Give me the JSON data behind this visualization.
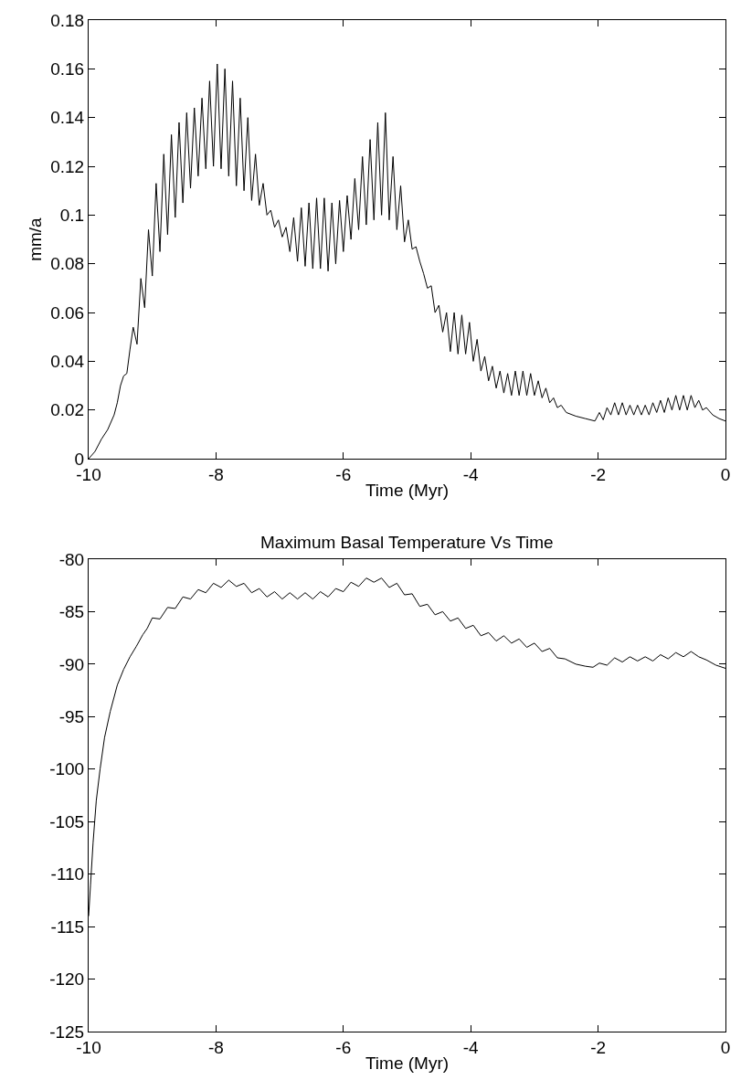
{
  "chart_data": [
    {
      "type": "line",
      "xlabel": "Time (Myr)",
      "ylabel": "mm/a",
      "xlim": [
        -10,
        0
      ],
      "ylim": [
        0,
        0.18
      ],
      "xticks": [
        -10,
        -8,
        -6,
        -4,
        -2,
        0
      ],
      "yticks": [
        0,
        0.02,
        0.04,
        0.06,
        0.08,
        {
          "value": 0.1,
          "label": "0.1"
        },
        0.12,
        0.14,
        0.16,
        0.18
      ],
      "marker": "none",
      "line_style": "solid",
      "series": [
        {
          "color": "#000000",
          "x": [
            -10,
            -9.9,
            -9.8,
            -9.7,
            -9.6,
            -9.55,
            -9.5,
            -9.45,
            -9.4,
            -9.35,
            -9.3,
            -9.24,
            -9.18,
            -9.12,
            -9.06,
            -9.0,
            -8.94,
            -8.88,
            -8.82,
            -8.76,
            -8.7,
            -8.64,
            -8.58,
            -8.52,
            -8.46,
            -8.4,
            -8.34,
            -8.28,
            -8.22,
            -8.16,
            -8.1,
            -8.04,
            -7.98,
            -7.92,
            -7.86,
            -7.8,
            -7.74,
            -7.68,
            -7.62,
            -7.56,
            -7.5,
            -7.44,
            -7.38,
            -7.32,
            -7.26,
            -7.2,
            -7.14,
            -7.08,
            -7.02,
            -6.96,
            -6.9,
            -6.84,
            -6.78,
            -6.72,
            -6.66,
            -6.6,
            -6.54,
            -6.48,
            -6.42,
            -6.36,
            -6.3,
            -6.24,
            -6.18,
            -6.12,
            -6.06,
            -6.0,
            -5.94,
            -5.88,
            -5.82,
            -5.76,
            -5.7,
            -5.64,
            -5.58,
            -5.52,
            -5.46,
            -5.4,
            -5.34,
            -5.28,
            -5.22,
            -5.16,
            -5.1,
            -5.04,
            -4.98,
            -4.92,
            -4.86,
            -4.8,
            -4.74,
            -4.68,
            -4.62,
            -4.56,
            -4.5,
            -4.44,
            -4.38,
            -4.32,
            -4.26,
            -4.2,
            -4.14,
            -4.08,
            -4.02,
            -3.96,
            -3.9,
            -3.84,
            -3.78,
            -3.72,
            -3.66,
            -3.6,
            -3.54,
            -3.48,
            -3.42,
            -3.36,
            -3.3,
            -3.24,
            -3.18,
            -3.12,
            -3.06,
            -3.0,
            -2.94,
            -2.88,
            -2.82,
            -2.76,
            -2.7,
            -2.64,
            -2.58,
            -2.5,
            -2.35,
            -2.2,
            -2.05,
            -1.98,
            -1.92,
            -1.86,
            -1.8,
            -1.74,
            -1.68,
            -1.62,
            -1.56,
            -1.5,
            -1.44,
            -1.38,
            -1.32,
            -1.26,
            -1.2,
            -1.14,
            -1.08,
            -1.02,
            -0.96,
            -0.9,
            -0.84,
            -0.78,
            -0.72,
            -0.66,
            -0.6,
            -0.54,
            -0.48,
            -0.42,
            -0.36,
            -0.3,
            -0.2,
            -0.1,
            0
          ],
          "values": [
            0,
            0.003,
            0.008,
            0.012,
            0.018,
            0.023,
            0.03,
            0.034,
            0.035,
            0.045,
            0.054,
            0.047,
            0.074,
            0.062,
            0.094,
            0.075,
            0.113,
            0.085,
            0.125,
            0.092,
            0.133,
            0.099,
            0.138,
            0.105,
            0.142,
            0.111,
            0.144,
            0.116,
            0.148,
            0.119,
            0.155,
            0.12,
            0.162,
            0.119,
            0.16,
            0.116,
            0.155,
            0.112,
            0.148,
            0.11,
            0.14,
            0.106,
            0.125,
            0.104,
            0.113,
            0.1,
            0.102,
            0.095,
            0.098,
            0.091,
            0.095,
            0.085,
            0.099,
            0.081,
            0.103,
            0.079,
            0.105,
            0.078,
            0.107,
            0.078,
            0.107,
            0.077,
            0.105,
            0.08,
            0.106,
            0.085,
            0.108,
            0.09,
            0.115,
            0.094,
            0.124,
            0.096,
            0.131,
            0.098,
            0.138,
            0.1,
            0.142,
            0.098,
            0.124,
            0.094,
            0.112,
            0.089,
            0.098,
            0.086,
            0.087,
            0.081,
            0.076,
            0.07,
            0.071,
            0.06,
            0.063,
            0.052,
            0.06,
            0.044,
            0.06,
            0.043,
            0.059,
            0.043,
            0.056,
            0.04,
            0.049,
            0.036,
            0.042,
            0.032,
            0.038,
            0.029,
            0.036,
            0.027,
            0.035,
            0.026,
            0.036,
            0.026,
            0.036,
            0.026,
            0.035,
            0.026,
            0.032,
            0.025,
            0.029,
            0.023,
            0.025,
            0.021,
            0.022,
            0.019,
            0.0175,
            0.0165,
            0.0155,
            0.019,
            0.016,
            0.021,
            0.018,
            0.023,
            0.018,
            0.023,
            0.018,
            0.022,
            0.018,
            0.022,
            0.018,
            0.022,
            0.018,
            0.023,
            0.019,
            0.024,
            0.019,
            0.025,
            0.02,
            0.026,
            0.02,
            0.026,
            0.02,
            0.026,
            0.021,
            0.024,
            0.02,
            0.021,
            0.018,
            0.0165,
            0.0155
          ]
        }
      ]
    },
    {
      "type": "line",
      "title": "Maximum Basal Temperature Vs Time",
      "xlabel": "Time (Myr)",
      "xlim": [
        -10,
        0
      ],
      "ylim": [
        -125,
        -80
      ],
      "xticks": [
        -10,
        -8,
        -6,
        -4,
        -2,
        0
      ],
      "yticks": [
        -125,
        -120,
        -115,
        -110,
        -105,
        -100,
        -95,
        -90,
        -85,
        -80
      ],
      "marker": "none",
      "line_style": "solid",
      "series": [
        {
          "color": "#000000",
          "x": [
            -10,
            -9.97,
            -9.93,
            -9.88,
            -9.82,
            -9.75,
            -9.66,
            -9.55,
            -9.45,
            -9.35,
            -9.25,
            -9.15,
            -9.08,
            -9.0,
            -8.88,
            -8.76,
            -8.64,
            -8.52,
            -8.4,
            -8.28,
            -8.16,
            -8.04,
            -7.92,
            -7.8,
            -7.68,
            -7.56,
            -7.44,
            -7.32,
            -7.2,
            -7.08,
            -6.96,
            -6.84,
            -6.72,
            -6.6,
            -6.48,
            -6.36,
            -6.24,
            -6.12,
            -6.0,
            -5.88,
            -5.76,
            -5.64,
            -5.52,
            -5.4,
            -5.28,
            -5.16,
            -5.04,
            -4.92,
            -4.8,
            -4.68,
            -4.56,
            -4.44,
            -4.32,
            -4.2,
            -4.08,
            -3.96,
            -3.84,
            -3.72,
            -3.6,
            -3.48,
            -3.36,
            -3.24,
            -3.12,
            -3.0,
            -2.88,
            -2.76,
            -2.64,
            -2.52,
            -2.35,
            -2.2,
            -2.08,
            -1.98,
            -1.86,
            -1.74,
            -1.62,
            -1.5,
            -1.38,
            -1.26,
            -1.14,
            -1.02,
            -0.9,
            -0.78,
            -0.66,
            -0.54,
            -0.42,
            -0.3,
            -0.15,
            0
          ],
          "values": [
            -114,
            -111,
            -107,
            -103,
            -100,
            -97,
            -94.5,
            -92,
            -90.5,
            -89.3,
            -88.3,
            -87.2,
            -86.6,
            -85.6,
            -85.7,
            -84.6,
            -84.7,
            -83.6,
            -83.8,
            -82.9,
            -83.2,
            -82.3,
            -82.7,
            -82.0,
            -82.6,
            -82.3,
            -83.2,
            -82.8,
            -83.6,
            -83.1,
            -83.8,
            -83.2,
            -83.8,
            -83.2,
            -83.8,
            -83.1,
            -83.6,
            -82.8,
            -83.1,
            -82.2,
            -82.6,
            -81.8,
            -82.2,
            -81.8,
            -82.7,
            -82.3,
            -83.4,
            -83.3,
            -84.5,
            -84.3,
            -85.3,
            -85.0,
            -85.9,
            -85.6,
            -86.6,
            -86.3,
            -87.3,
            -87.0,
            -87.8,
            -87.3,
            -88.0,
            -87.6,
            -88.4,
            -88.0,
            -88.8,
            -88.5,
            -89.4,
            -89.5,
            -90.0,
            -90.2,
            -90.3,
            -89.9,
            -90.1,
            -89.4,
            -89.8,
            -89.3,
            -89.7,
            -89.3,
            -89.7,
            -89.1,
            -89.5,
            -88.9,
            -89.3,
            -88.8,
            -89.3,
            -89.6,
            -90.1,
            -90.4
          ]
        }
      ]
    }
  ]
}
